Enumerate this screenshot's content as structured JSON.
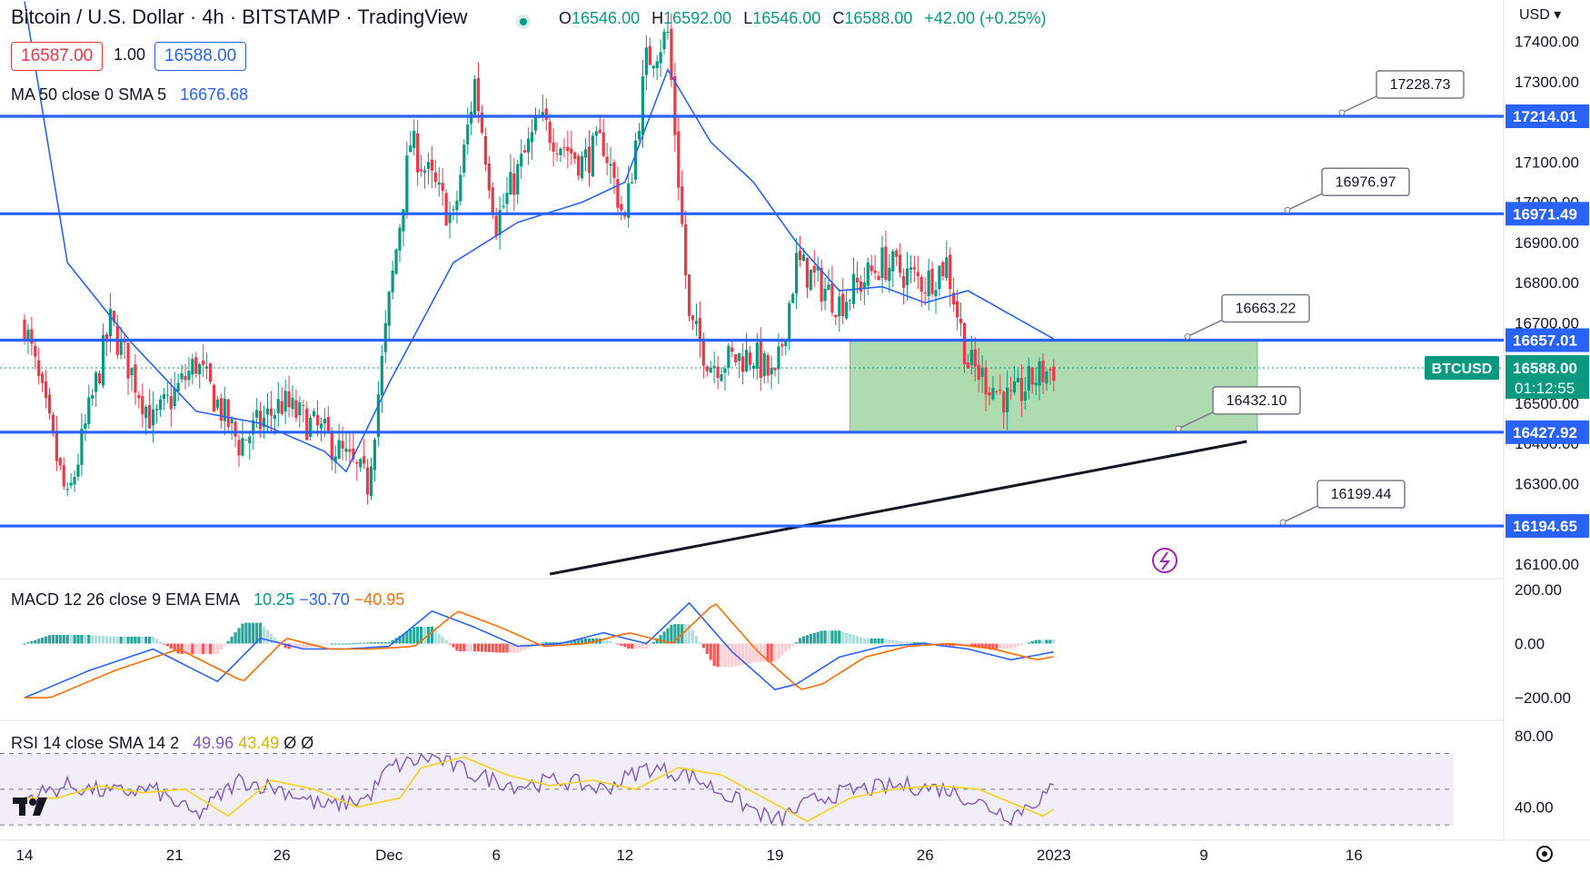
{
  "header": {
    "title": "Bitcoin / U.S. Dollar · 4h · BITSTAMP · TradingView",
    "ohlc": [
      {
        "k": "O",
        "v": "16546.00"
      },
      {
        "k": "H",
        "v": "16592.00"
      },
      {
        "k": "L",
        "v": "16546.00"
      },
      {
        "k": "C",
        "v": "16588.00"
      }
    ],
    "change": "+42.00 (+0.25%)",
    "bid": "16587.00",
    "spread": "1.00",
    "ask": "16588.00",
    "currency": "USD"
  },
  "indicators": {
    "ma": {
      "label": "MA 50 close 0 SMA 5",
      "value": "16676.68"
    },
    "macd": {
      "label": "MACD 12 26 close 9 EMA EMA",
      "hist": "10.25",
      "macd": "−30.70",
      "signal": "−40.95"
    },
    "rsi": {
      "label": "RSI 14 close SMA 14 2",
      "rsi": "49.96",
      "sma": "43.49",
      "extra1": "Ø",
      "extra2": "Ø"
    }
  },
  "colors": {
    "up": "#089981",
    "down": "#f23645",
    "level": "#2962ff",
    "ma": "#2962ff",
    "signal": "#ff6d00",
    "rsi": "#7e57c2",
    "rsi_ma": "#f7d21a",
    "zone": "#4caf50",
    "trend": "#131722"
  },
  "chart_data": {
    "type": "candlestick",
    "symbol": "BTCUSD",
    "last_price": "16588.00",
    "countdown": "01:12:55",
    "ylim": [
      16075,
      17440
    ],
    "yticks": [
      "17400.00",
      "17300.00",
      "17200.00",
      "17100.00",
      "17000.00",
      "16900.00",
      "16800.00",
      "16700.00",
      "16600.00",
      "16500.00",
      "16400.00",
      "16300.00",
      "16200.00",
      "16100.00"
    ],
    "xticks": [
      {
        "label": "14",
        "day": 0
      },
      {
        "label": "21",
        "day": 7
      },
      {
        "label": "26",
        "day": 12
      },
      {
        "label": "Dec",
        "day": 17
      },
      {
        "label": "6",
        "day": 22
      },
      {
        "label": "12",
        "day": 28
      },
      {
        "label": "19",
        "day": 35
      },
      {
        "label": "26",
        "day": 42
      },
      {
        "label": "2023",
        "day": 48
      },
      {
        "label": "9",
        "day": 55
      },
      {
        "label": "16",
        "day": 62
      }
    ],
    "candle_anchors": [
      [
        0,
        16700
      ],
      [
        2,
        16250
      ],
      [
        4,
        16700
      ],
      [
        6,
        16450
      ],
      [
        8,
        16600
      ],
      [
        10,
        16400
      ],
      [
        12,
        16500
      ],
      [
        14,
        16420
      ],
      [
        16,
        16300
      ],
      [
        17,
        16750
      ],
      [
        18,
        17150
      ],
      [
        20,
        16950
      ],
      [
        21,
        17300
      ],
      [
        22,
        16950
      ],
      [
        24,
        17200
      ],
      [
        26,
        17100
      ],
      [
        27,
        17150
      ],
      [
        28,
        16950
      ],
      [
        29,
        17350
      ],
      [
        30,
        17420
      ],
      [
        31,
        16700
      ],
      [
        32,
        16600
      ],
      [
        34,
        16620
      ],
      [
        35,
        16550
      ],
      [
        36,
        16850
      ],
      [
        38,
        16750
      ],
      [
        40,
        16850
      ],
      [
        42,
        16800
      ],
      [
        43,
        16850
      ],
      [
        44,
        16600
      ],
      [
        46,
        16500
      ],
      [
        47,
        16560
      ],
      [
        48,
        16588
      ]
    ],
    "ma50_anchors": [
      [
        0,
        17500
      ],
      [
        2,
        16850
      ],
      [
        5,
        16650
      ],
      [
        8,
        16480
      ],
      [
        11,
        16450
      ],
      [
        14,
        16380
      ],
      [
        15,
        16330
      ],
      [
        17,
        16550
      ],
      [
        20,
        16850
      ],
      [
        23,
        16950
      ],
      [
        26,
        17000
      ],
      [
        28,
        17050
      ],
      [
        30,
        17330
      ],
      [
        32,
        17150
      ],
      [
        34,
        17050
      ],
      [
        36,
        16900
      ],
      [
        38,
        16780
      ],
      [
        40,
        16790
      ],
      [
        42,
        16750
      ],
      [
        44,
        16780
      ],
      [
        46,
        16720
      ],
      [
        48,
        16660
      ]
    ],
    "levels": [
      {
        "value": 17214.01,
        "label": "17214.01",
        "callout": "17228.73"
      },
      {
        "value": 16971.49,
        "label": "16971.49",
        "callout": "16976.97"
      },
      {
        "value": 16657.01,
        "label": "16657.01",
        "callout": "16663.22"
      },
      {
        "value": 16427.92,
        "label": "16427.92",
        "callout": "16432.10"
      },
      {
        "value": 16194.65,
        "label": "16194.65",
        "callout": "16199.44"
      }
    ],
    "zone": {
      "from_day": 38.5,
      "to_day": 57.5,
      "low": 16427.92,
      "high": 16657.01
    },
    "trendline": {
      "from": [
        24.5,
        16075
      ],
      "to": [
        57,
        16405
      ]
    },
    "macd": {
      "ylim": [
        -260,
        230
      ],
      "yticks": [
        "200.00",
        "0.00",
        "−200.00"
      ],
      "anchors": [
        [
          0,
          -200
        ],
        [
          3,
          -100
        ],
        [
          6,
          -20
        ],
        [
          8,
          -100
        ],
        [
          9,
          -140
        ],
        [
          11,
          20
        ],
        [
          13,
          -20
        ],
        [
          15,
          -20
        ],
        [
          17,
          -10
        ],
        [
          19,
          120
        ],
        [
          21,
          60
        ],
        [
          23,
          -10
        ],
        [
          25,
          0
        ],
        [
          27,
          40
        ],
        [
          29,
          0
        ],
        [
          31,
          150
        ],
        [
          33,
          -30
        ],
        [
          35,
          -170
        ],
        [
          36,
          -150
        ],
        [
          38,
          -50
        ],
        [
          40,
          -10
        ],
        [
          42,
          0
        ],
        [
          44,
          -20
        ],
        [
          46,
          -60
        ],
        [
          48,
          -31
        ]
      ]
    },
    "rsi": {
      "ylim": [
        25,
        85
      ],
      "yticks": [
        "80.00",
        "40.00"
      ],
      "upper": 70,
      "middle": 50,
      "lower": 30,
      "anchors": [
        [
          0,
          45
        ],
        [
          2,
          52
        ],
        [
          4,
          48
        ],
        [
          6,
          50
        ],
        [
          8,
          35
        ],
        [
          10,
          55
        ],
        [
          12,
          50
        ],
        [
          14,
          40
        ],
        [
          16,
          45
        ],
        [
          17,
          62
        ],
        [
          19,
          68
        ],
        [
          21,
          58
        ],
        [
          23,
          52
        ],
        [
          25,
          55
        ],
        [
          27,
          50
        ],
        [
          29,
          62
        ],
        [
          31,
          58
        ],
        [
          33,
          45
        ],
        [
          35,
          32
        ],
        [
          37,
          45
        ],
        [
          39,
          50
        ],
        [
          41,
          52
        ],
        [
          43,
          50
        ],
        [
          45,
          40
        ],
        [
          46,
          35
        ],
        [
          48,
          49.96
        ]
      ]
    }
  }
}
